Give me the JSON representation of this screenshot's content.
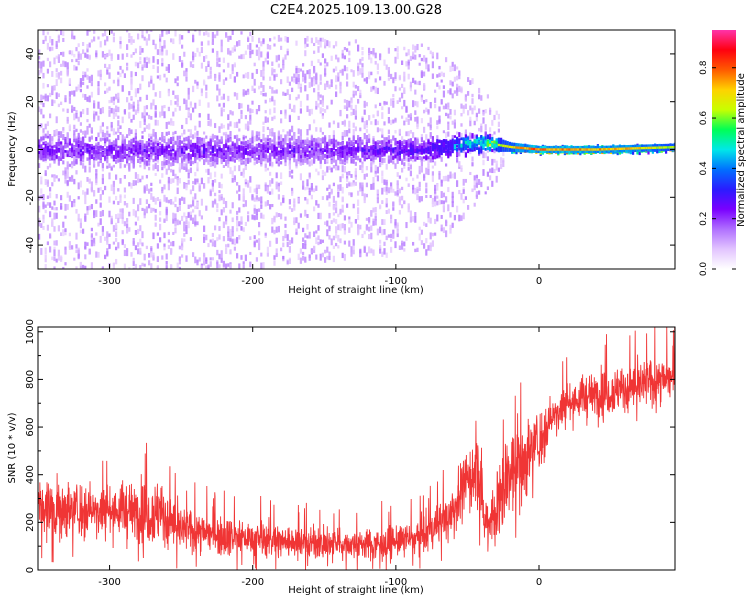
{
  "figure_title": "C2E4.2025.109.13.00.G28",
  "colors": {
    "snr_line": "#f03535",
    "colormap": [
      "#ffffff",
      "#e2c4ff",
      "#b070ff",
      "#7a00ff",
      "#2a1cff",
      "#0070ff",
      "#00e8e8",
      "#00ff55",
      "#c8ff00",
      "#ffd200",
      "#ff5a00",
      "#ff0010",
      "#ff33aa"
    ]
  },
  "chart_data": [
    {
      "type": "heatmap",
      "title": "C2E4.2025.109.13.00.G28",
      "xlabel": "Height of straight line (km)",
      "ylabel": "Frequency (Hz)",
      "xlim": [
        -350,
        95
      ],
      "ylim": [
        -50,
        50
      ],
      "x_ticks": [
        -300,
        -200,
        -100,
        0
      ],
      "x_tick_labels": [
        "-300",
        "-200",
        "-100",
        "0"
      ],
      "y_ticks": [
        -40,
        -20,
        0,
        20,
        40
      ],
      "y_tick_labels": [
        "-40",
        "-20",
        "0",
        "20",
        "40"
      ],
      "colorbar": {
        "label": "Normalized spectral amplitude",
        "range": [
          0,
          0.95
        ],
        "ticks": [
          0.0,
          0.2,
          0.4,
          0.6,
          0.8
        ],
        "tick_labels": [
          "0.0",
          "0.2",
          "0.4",
          "0.6",
          "0.8"
        ]
      },
      "description_points": [
        {
          "x": -350,
          "center_hz": 0,
          "core_halfwidth_hz": 9,
          "scatter_halfwidth_hz": 48,
          "peak_amp": 0.25
        },
        {
          "x": -250,
          "center_hz": 0,
          "core_halfwidth_hz": 8,
          "scatter_halfwidth_hz": 45,
          "peak_amp": 0.25
        },
        {
          "x": -150,
          "center_hz": 0,
          "core_halfwidth_hz": 7,
          "scatter_halfwidth_hz": 40,
          "peak_amp": 0.25
        },
        {
          "x": -80,
          "center_hz": 0,
          "core_halfwidth_hz": 6,
          "scatter_halfwidth_hz": 38,
          "peak_amp": 0.3
        },
        {
          "x": -60,
          "center_hz": 2,
          "core_halfwidth_hz": 5,
          "scatter_halfwidth_hz": 30,
          "peak_amp": 0.45
        },
        {
          "x": -40,
          "center_hz": 3,
          "core_halfwidth_hz": 4,
          "scatter_halfwidth_hz": 20,
          "peak_amp": 0.6
        },
        {
          "x": -20,
          "center_hz": 1,
          "core_halfwidth_hz": 2,
          "scatter_halfwidth_hz": 4,
          "peak_amp": 0.8
        },
        {
          "x": 0,
          "center_hz": 0,
          "core_halfwidth_hz": 1.5,
          "scatter_halfwidth_hz": 3,
          "peak_amp": 0.9
        },
        {
          "x": 40,
          "center_hz": 0,
          "core_halfwidth_hz": 1.5,
          "scatter_halfwidth_hz": 3,
          "peak_amp": 0.9
        },
        {
          "x": 95,
          "center_hz": 1,
          "core_halfwidth_hz": 1.5,
          "scatter_halfwidth_hz": 3,
          "peak_amp": 0.75
        }
      ]
    },
    {
      "type": "line",
      "xlabel": "Height of straight line (km)",
      "ylabel": "SNR (10 * v/v)",
      "xlim": [
        -350,
        95
      ],
      "ylim": [
        0,
        1020
      ],
      "x_ticks": [
        -300,
        -200,
        -100,
        0
      ],
      "x_tick_labels": [
        "-300",
        "-200",
        "-100",
        "0"
      ],
      "y_ticks": [
        0,
        200,
        400,
        600,
        800,
        1000
      ],
      "y_tick_labels": [
        "0",
        "200",
        "400",
        "600",
        "800",
        "1000"
      ],
      "series": [
        {
          "name": "SNR",
          "envelope": {
            "x": [
              -350,
              -300,
              -265,
              -250,
              -200,
              -150,
              -110,
              -80,
              -60,
              -50,
              -42,
              -38,
              -30,
              -20,
              -10,
              -5,
              0,
              10,
              20,
              40,
              60,
              80,
              95
            ],
            "mean": [
              260,
              250,
              240,
              170,
              130,
              110,
              110,
              140,
              250,
              380,
              420,
              200,
              250,
              420,
              450,
              520,
              540,
              650,
              700,
              740,
              760,
              790,
              810
            ],
            "lower": [
              60,
              60,
              60,
              40,
              30,
              30,
              30,
              40,
              60,
              100,
              120,
              30,
              40,
              150,
              200,
              300,
              350,
              500,
              580,
              620,
              650,
              680,
              700
            ],
            "upper": [
              460,
              440,
              500,
              320,
              260,
              230,
              230,
              280,
              420,
              570,
              600,
              400,
              520,
              720,
              750,
              780,
              760,
              820,
              880,
              930,
              960,
              980,
              1000
            ]
          }
        }
      ]
    }
  ]
}
